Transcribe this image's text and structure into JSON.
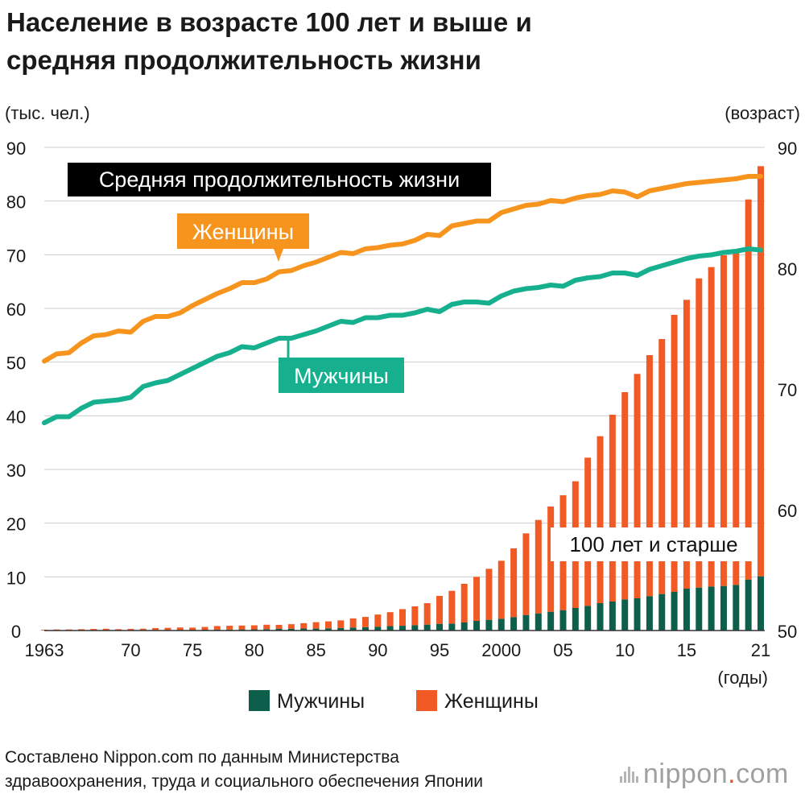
{
  "title_lines": [
    "Население в возрасте 100 лет и выше и",
    "средняя продолжительность жизни"
  ],
  "source_lines": [
    "Составлено Nippon.com по данным Министерства",
    "здравоохранения, труда и социального обеспечения Японии"
  ],
  "logo": {
    "main": "nippon",
    "dot": ".",
    "domain": "com",
    "icon": "nippon-logo-bars"
  },
  "colors": {
    "men_bar": "#0d5e4a",
    "women_bar": "#f15a24",
    "women_line": "#f7941d",
    "men_line": "#17b08f",
    "grid": "#cccccc",
    "label_dark_bg": "#000000"
  },
  "chart_data": {
    "type": "bar+line",
    "left_axis_unit": "(тыс. чел.)",
    "right_axis_unit": "(возраст)",
    "x_axis_unit": "(годы)",
    "left_ylim": [
      0,
      90
    ],
    "left_yticks": [
      0,
      10,
      20,
      30,
      40,
      50,
      60,
      70,
      80,
      90
    ],
    "right_ylim": [
      50,
      90
    ],
    "right_yticks": [
      50,
      60,
      70,
      80,
      90
    ],
    "x_ticks": [
      {
        "year": 1963,
        "label": "1963"
      },
      {
        "year": 1970,
        "label": "70"
      },
      {
        "year": 1975,
        "label": "75"
      },
      {
        "year": 1980,
        "label": "80"
      },
      {
        "year": 1985,
        "label": "85"
      },
      {
        "year": 1990,
        "label": "90"
      },
      {
        "year": 1995,
        "label": "95"
      },
      {
        "year": 2000,
        "label": "2000"
      },
      {
        "year": 2005,
        "label": "05"
      },
      {
        "year": 2010,
        "label": "10"
      },
      {
        "year": 2015,
        "label": "15"
      },
      {
        "year": 2021,
        "label": "21"
      }
    ],
    "grid": true,
    "legend": {
      "position": "bottom",
      "items": [
        {
          "name": "Мужчины",
          "color": "#0d5e4a"
        },
        {
          "name": "Женщины",
          "color": "#f15a24"
        }
      ]
    },
    "annotations": {
      "life_expectancy_box": "Средняя продолжительность жизни",
      "women_line_label": "Женщины",
      "men_line_label": "Мужчины",
      "centenarians_label": "100 лет и старше"
    },
    "years": [
      1963,
      1964,
      1965,
      1966,
      1967,
      1968,
      1969,
      1970,
      1971,
      1972,
      1973,
      1974,
      1975,
      1976,
      1977,
      1978,
      1979,
      1980,
      1981,
      1982,
      1983,
      1984,
      1985,
      1986,
      1987,
      1988,
      1989,
      1990,
      1991,
      1992,
      1993,
      1994,
      1995,
      1996,
      1997,
      1998,
      1999,
      2000,
      2001,
      2002,
      2003,
      2004,
      2005,
      2006,
      2007,
      2008,
      2009,
      2010,
      2011,
      2012,
      2013,
      2014,
      2015,
      2016,
      2017,
      2018,
      2019,
      2020,
      2021
    ],
    "bar_series": [
      {
        "name": "Мужчины",
        "axis": "left",
        "values": [
          0.03,
          0.04,
          0.04,
          0.04,
          0.05,
          0.06,
          0.07,
          0.07,
          0.09,
          0.1,
          0.12,
          0.13,
          0.14,
          0.15,
          0.17,
          0.18,
          0.21,
          0.22,
          0.26,
          0.31,
          0.34,
          0.37,
          0.36,
          0.41,
          0.49,
          0.56,
          0.63,
          0.68,
          0.82,
          0.89,
          1.0,
          1.1,
          1.25,
          1.3,
          1.5,
          1.8,
          2.0,
          2.2,
          2.5,
          2.9,
          3.2,
          3.5,
          3.8,
          4.2,
          4.6,
          5.1,
          5.4,
          5.8,
          6.0,
          6.4,
          6.8,
          7.2,
          7.8,
          8.0,
          8.2,
          8.3,
          8.5,
          9.5,
          10.1
        ]
      },
      {
        "name": "Женщины",
        "axis": "left",
        "values": [
          0.12,
          0.15,
          0.16,
          0.21,
          0.24,
          0.27,
          0.18,
          0.24,
          0.25,
          0.36,
          0.38,
          0.44,
          0.41,
          0.52,
          0.67,
          0.71,
          0.72,
          0.75,
          0.82,
          0.75,
          0.84,
          1.0,
          1.2,
          1.3,
          1.4,
          1.7,
          1.9,
          2.3,
          2.6,
          3.1,
          3.5,
          4.0,
          5.2,
          6.1,
          7.2,
          8.2,
          9.5,
          10.8,
          12.8,
          15.2,
          17.4,
          19.6,
          21.4,
          23.6,
          27.6,
          31.1,
          34.8,
          38.6,
          41.8,
          44.9,
          47.5,
          51.6,
          53.8,
          57.6,
          59.5,
          61.6,
          62.2,
          70.8,
          76.4
        ]
      }
    ],
    "line_series": [
      {
        "name": "Женщины",
        "axis": "right",
        "values": [
          72.3,
          72.9,
          73.0,
          73.8,
          74.4,
          74.5,
          74.8,
          74.7,
          75.6,
          76.0,
          76.0,
          76.3,
          76.9,
          77.4,
          77.9,
          78.3,
          78.8,
          78.8,
          79.1,
          79.7,
          79.8,
          80.2,
          80.5,
          80.9,
          81.3,
          81.2,
          81.6,
          81.7,
          81.9,
          82.0,
          82.3,
          82.8,
          82.7,
          83.5,
          83.7,
          83.9,
          83.9,
          84.6,
          84.9,
          85.2,
          85.3,
          85.6,
          85.5,
          85.8,
          86.0,
          86.1,
          86.4,
          86.3,
          85.9,
          86.4,
          86.6,
          86.8,
          87.0,
          87.1,
          87.2,
          87.3,
          87.4,
          87.6,
          87.6
        ]
      },
      {
        "name": "Мужчины",
        "axis": "right",
        "values": [
          67.2,
          67.7,
          67.7,
          68.4,
          68.9,
          69.0,
          69.1,
          69.3,
          70.2,
          70.5,
          70.7,
          71.2,
          71.7,
          72.2,
          72.7,
          73.0,
          73.5,
          73.4,
          73.8,
          74.2,
          74.2,
          74.5,
          74.8,
          75.2,
          75.6,
          75.5,
          75.9,
          75.9,
          76.1,
          76.1,
          76.3,
          76.6,
          76.4,
          77.0,
          77.2,
          77.2,
          77.1,
          77.7,
          78.1,
          78.3,
          78.4,
          78.6,
          78.5,
          79.0,
          79.2,
          79.3,
          79.6,
          79.6,
          79.4,
          79.9,
          80.2,
          80.5,
          80.8,
          81.0,
          81.1,
          81.3,
          81.4,
          81.6,
          81.5
        ]
      }
    ]
  }
}
